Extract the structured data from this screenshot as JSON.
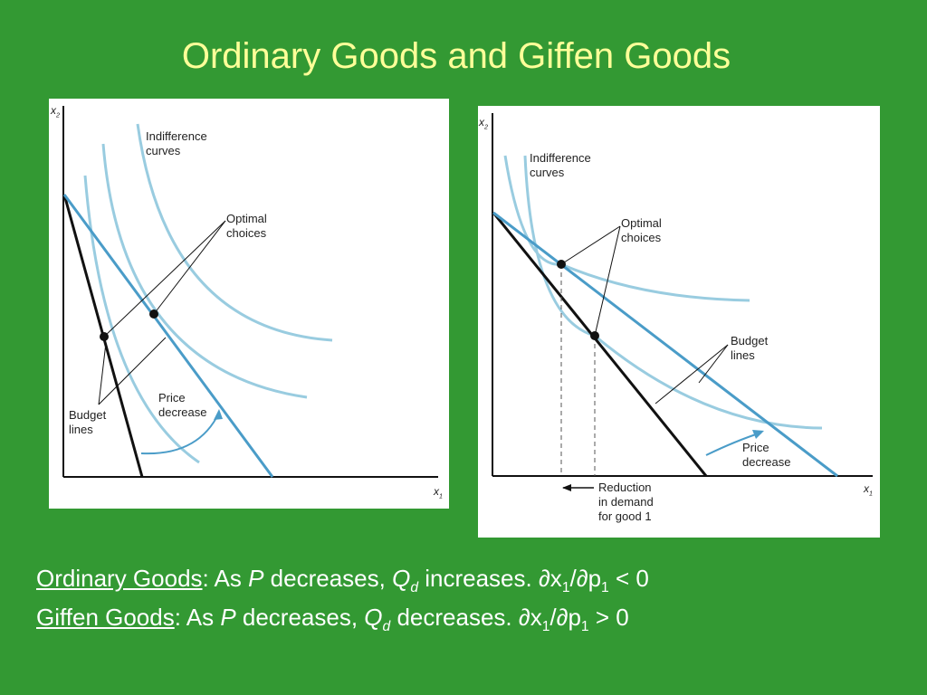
{
  "title": "Ordinary Goods and Giffen Goods",
  "left_diagram": {
    "y_axis": "x",
    "y_axis_sub": "2",
    "x_axis": "x",
    "x_axis_sub": "1",
    "indifference_label_1": "Indifference",
    "indifference_label_2": "curves",
    "optimal_label_1": "Optimal",
    "optimal_label_2": "choices",
    "budget_label_1": "Budget",
    "budget_label_2": "lines",
    "price_label_1": "Price",
    "price_label_2": "decrease"
  },
  "right_diagram": {
    "y_axis": "x",
    "y_axis_sub": "2",
    "x_axis": "x",
    "x_axis_sub": "1",
    "indifference_label_1": "Indifference",
    "indifference_label_2": "curves",
    "optimal_label_1": "Optimal",
    "optimal_label_2": "choices",
    "budget_label_1": "Budget",
    "budget_label_2": "lines",
    "price_label_1": "Price",
    "price_label_2": "decrease",
    "reduction_label_1": "Reduction",
    "reduction_label_2": "in demand",
    "reduction_label_3": "for good 1"
  },
  "ordinary": {
    "term": "Ordinary Goods",
    "text_a": ": As ",
    "p": "P",
    "text_b": " decreases, ",
    "q": "Q",
    "q_sub": "d",
    "text_c": " increases. ∂x",
    "x_sub": "1",
    "text_d": "/∂p",
    "p_sub": "1",
    "text_e": " < 0"
  },
  "giffen": {
    "term": "Giffen Goods",
    "text_a": ": As ",
    "p": "P",
    "text_b": " decreases, ",
    "q": "Q",
    "q_sub": "d",
    "text_c": " decreases. ∂x",
    "x_sub": "1",
    "text_d": "/∂p",
    "p_sub": "1",
    "text_e": " > 0"
  },
  "colors": {
    "background": "#339933",
    "title": "#ffff99",
    "curve_light": "#99cce0",
    "curve_blue": "#4a9cc8",
    "line_black": "#111111"
  }
}
